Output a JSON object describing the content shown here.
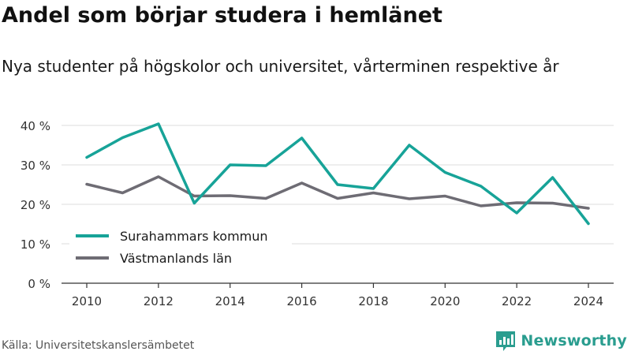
{
  "header": {
    "title": "Andel som börjar studera i hemlänet",
    "subtitle": "Nya studenter på högskolor och universitet, vårterminen respektive år"
  },
  "footer": {
    "source": "Källa: Universitetskanslersämbetet",
    "brand": "Newsworthy",
    "brand_icon": "newsworthy-logo-icon",
    "brand_color": "#2a9d8f"
  },
  "chart_data": {
    "type": "line",
    "x": [
      2010,
      2011,
      2012,
      2013,
      2014,
      2015,
      2016,
      2017,
      2018,
      2019,
      2020,
      2021,
      2022,
      2023,
      2024
    ],
    "x_ticks": [
      2010,
      2012,
      2014,
      2016,
      2018,
      2020,
      2022,
      2024
    ],
    "y_ticks": [
      0,
      10,
      20,
      30,
      40
    ],
    "y_tick_labels": [
      "0 %",
      "10 %",
      "20 %",
      "30 %",
      "40 %"
    ],
    "ylim": [
      0,
      40
    ],
    "grid": true,
    "legend_position": "bottom-left",
    "series": [
      {
        "name": "Surahammars kommun",
        "color": "#17a398",
        "values": [
          31.9,
          36.9,
          40.4,
          20.3,
          30.0,
          29.8,
          36.8,
          25.0,
          24.0,
          35.0,
          28.1,
          24.6,
          17.8,
          26.8,
          15.1
        ]
      },
      {
        "name": "Västmanlands län",
        "color": "#6e6c74",
        "values": [
          25.1,
          22.9,
          27.0,
          22.1,
          22.2,
          21.5,
          25.4,
          21.5,
          22.9,
          21.4,
          22.1,
          19.6,
          20.4,
          20.3,
          19.0
        ]
      }
    ]
  }
}
